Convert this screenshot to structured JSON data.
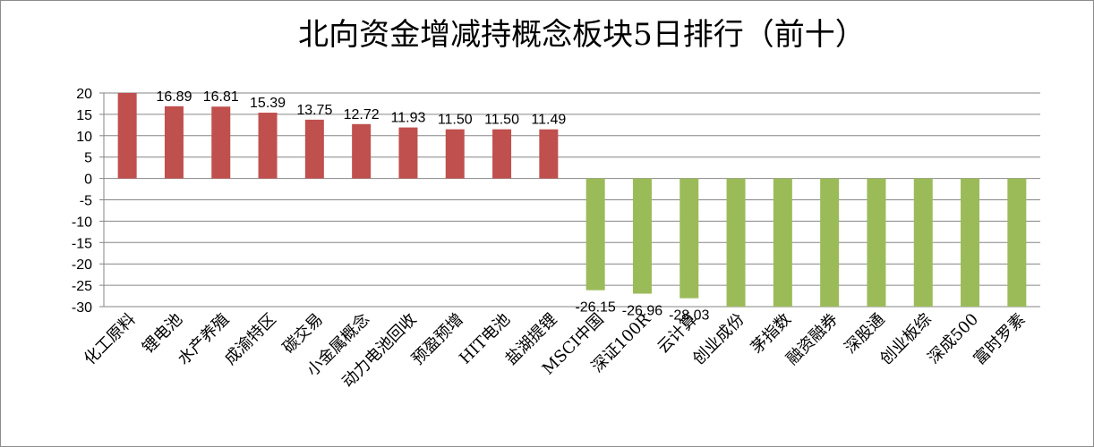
{
  "chart_data": {
    "type": "bar",
    "title": "北向资金增减持概念板块5日排行（前十）",
    "categories": [
      "化工原料",
      "锂电池",
      "水产养殖",
      "成渝特区",
      "碳交易",
      "小金属概念",
      "动力电池回收",
      "预盈预增",
      "HIT电池",
      "盐湖提锂",
      "MSCI中国",
      "深证100R",
      "云计算",
      "创业成份",
      "茅指数",
      "融资融券",
      "深股通",
      "创业板综",
      "深成500",
      "富时罗素"
    ],
    "values": [
      20.0,
      16.89,
      16.81,
      15.39,
      13.75,
      12.72,
      11.93,
      11.5,
      11.5,
      11.49,
      -26.15,
      -26.96,
      -28.03,
      -30.0,
      -30.0,
      -30.0,
      -30.0,
      -30.0,
      -30.0,
      -30.0
    ],
    "data_labels": [
      "",
      "16.89",
      "16.81",
      "15.39",
      "13.75",
      "12.72",
      "11.93",
      "11.50",
      "11.50",
      "11.49",
      "-26.15",
      "-26.96",
      "-28.03",
      "",
      "",
      "",
      "",
      "",
      "",
      ""
    ],
    "ylim": [
      -30,
      20
    ],
    "yticks": [
      20,
      15,
      10,
      5,
      0,
      -5,
      -10,
      -15,
      -20,
      -25,
      -30
    ],
    "grid": true,
    "legend": "none",
    "colors": {
      "positive": "#C0504D",
      "negative": "#9BBB59",
      "grid": "#868686"
    }
  }
}
